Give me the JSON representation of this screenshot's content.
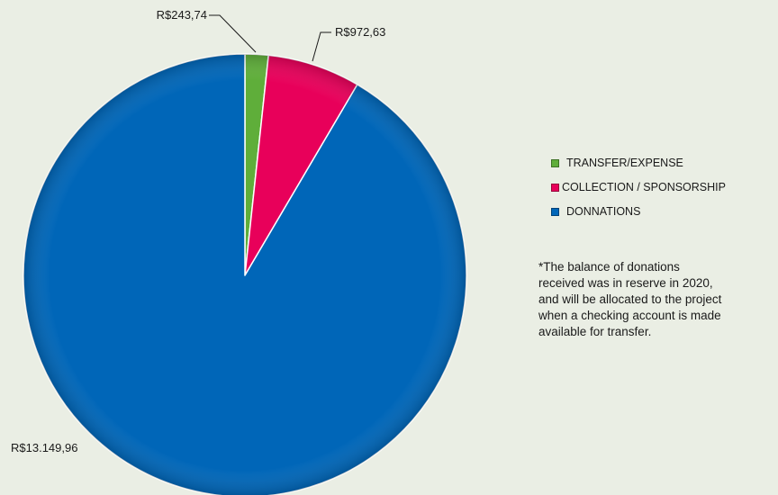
{
  "chart_data": {
    "type": "pie",
    "title": "",
    "slices": [
      {
        "label": "TRANSFER/EXPENSE",
        "value": 243.74,
        "data_label": "R$243,74",
        "color": "#5fae3a"
      },
      {
        "label": "COLLECTION / SPONSORSHIP",
        "value": 972.63,
        "data_label": "R$972,63",
        "color": "#e8005a"
      },
      {
        "label": "DONNATIONS",
        "value": 13149.96,
        "data_label": "R$13.149,96",
        "color": "#0066b8"
      }
    ],
    "legend_position": "right"
  },
  "note": "*The balance of donations\nreceived was in reserve in 2020,\nand will be allocated to the project\nwhen a checking account is made\navailable for transfer."
}
